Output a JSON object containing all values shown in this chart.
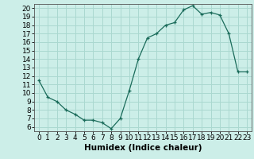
{
  "x": [
    0,
    1,
    2,
    3,
    4,
    5,
    6,
    7,
    8,
    9,
    10,
    11,
    12,
    13,
    14,
    15,
    16,
    17,
    18,
    19,
    20,
    21,
    22,
    23
  ],
  "y": [
    11.5,
    9.5,
    9.0,
    8.0,
    7.5,
    6.8,
    6.8,
    6.5,
    5.8,
    7.0,
    10.3,
    14.0,
    16.5,
    17.0,
    18.0,
    18.3,
    19.8,
    20.3,
    19.3,
    19.5,
    19.2,
    17.0,
    12.5,
    12.5
  ],
  "line_color": "#1a6b5a",
  "marker": "+",
  "bg_color": "#cceee8",
  "grid_color": "#aad8d0",
  "xlabel": "Humidex (Indice chaleur)",
  "xlim": [
    -0.5,
    23.5
  ],
  "ylim": [
    5.5,
    20.5
  ],
  "xticks": [
    0,
    1,
    2,
    3,
    4,
    5,
    6,
    7,
    8,
    9,
    10,
    11,
    12,
    13,
    14,
    15,
    16,
    17,
    18,
    19,
    20,
    21,
    22,
    23
  ],
  "yticks": [
    6,
    7,
    8,
    9,
    10,
    11,
    12,
    13,
    14,
    15,
    16,
    17,
    18,
    19,
    20
  ],
  "tick_font_size": 6.5,
  "label_font_size": 7.5
}
